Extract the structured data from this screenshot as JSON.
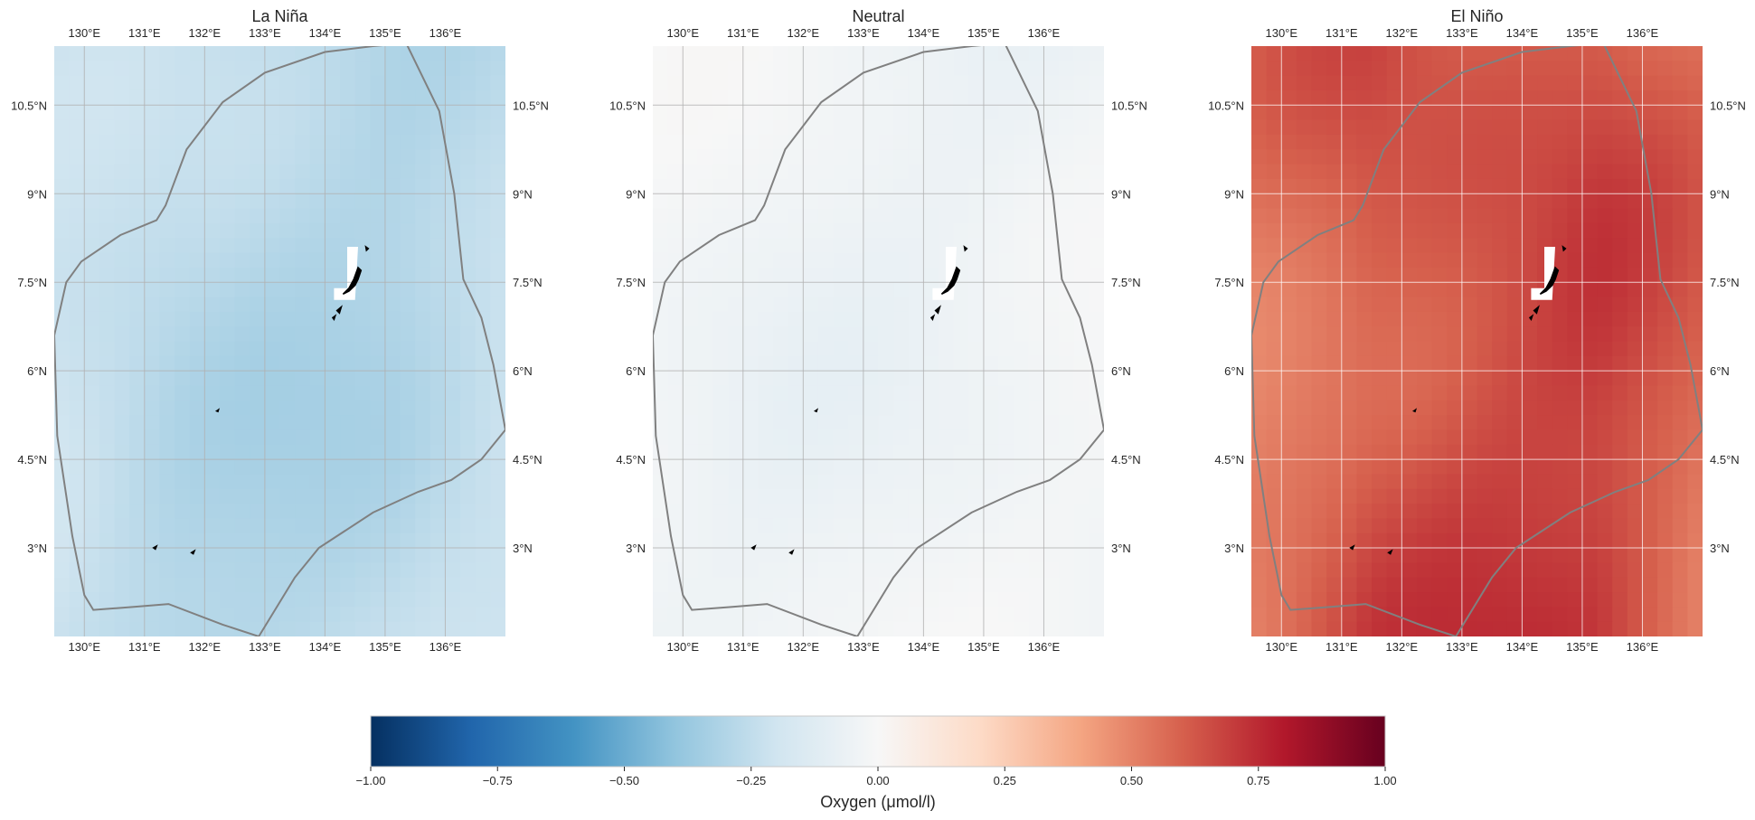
{
  "figure": {
    "panels": [
      {
        "id": "la-nina",
        "title": "La Niña",
        "anomaly_base": -0.28,
        "anomaly_amplitude": 0.07
      },
      {
        "id": "neutral",
        "title": "Neutral",
        "anomaly_base": -0.04,
        "anomaly_amplitude": 0.05
      },
      {
        "id": "el-nino",
        "title": "El Niño",
        "anomaly_base": 0.66,
        "anomaly_amplitude": 0.11
      }
    ],
    "lon_ticks": [
      {
        "value": 130,
        "label": "130°E"
      },
      {
        "value": 131,
        "label": "131°E"
      },
      {
        "value": 132,
        "label": "132°E"
      },
      {
        "value": 133,
        "label": "133°E"
      },
      {
        "value": 134,
        "label": "134°E"
      },
      {
        "value": 135,
        "label": "135°E"
      },
      {
        "value": 136,
        "label": "136°E"
      }
    ],
    "lat_ticks": [
      {
        "value": 10.5,
        "label": "10.5°N"
      },
      {
        "value": 9,
        "label": "9°N"
      },
      {
        "value": 7.5,
        "label": "7.5°N"
      },
      {
        "value": 6,
        "label": "6°N"
      },
      {
        "value": 4.5,
        "label": "4.5°N"
      },
      {
        "value": 3,
        "label": "3°N"
      }
    ],
    "extent": {
      "lon_min": 129.5,
      "lon_max": 137.0,
      "lat_min": 1.5,
      "lat_max": 11.5
    },
    "colorbar": {
      "label": "Oxygen (μmol/l)",
      "range": [
        -1.0,
        1.0
      ],
      "ticks": [
        {
          "value": -1.0,
          "label": "−1.00"
        },
        {
          "value": -0.75,
          "label": "−0.75"
        },
        {
          "value": -0.5,
          "label": "−0.50"
        },
        {
          "value": -0.25,
          "label": "−0.25"
        },
        {
          "value": 0.0,
          "label": "0.00"
        },
        {
          "value": 0.25,
          "label": "0.25"
        },
        {
          "value": 0.5,
          "label": "0.50"
        },
        {
          "value": 0.75,
          "label": "0.75"
        },
        {
          "value": 1.0,
          "label": "1.00"
        }
      ],
      "colormap": "RdBu_r",
      "colormap_stops": [
        "#053061",
        "#2166ac",
        "#4393c3",
        "#92c5de",
        "#d1e5f0",
        "#f7f7f7",
        "#fddbc7",
        "#f4a582",
        "#d6604d",
        "#b2182b",
        "#67001f"
      ]
    },
    "eez_boundary_color": "#808080",
    "land_color": "#000000",
    "eez_boundary": [
      [
        129.5,
        6.6
      ],
      [
        129.7,
        7.5
      ],
      [
        129.95,
        7.85
      ],
      [
        130.6,
        8.3
      ],
      [
        131.2,
        8.55
      ],
      [
        131.35,
        8.8
      ],
      [
        131.7,
        9.75
      ],
      [
        132.3,
        10.55
      ],
      [
        133.0,
        11.05
      ],
      [
        134.0,
        11.4
      ],
      [
        134.8,
        11.5
      ],
      [
        135.35,
        11.55
      ],
      [
        135.9,
        10.4
      ],
      [
        136.15,
        9.0
      ],
      [
        136.3,
        7.55
      ],
      [
        136.6,
        6.9
      ],
      [
        136.8,
        6.1
      ],
      [
        137.0,
        5.0
      ],
      [
        136.6,
        4.5
      ],
      [
        136.1,
        4.15
      ],
      [
        135.55,
        3.95
      ],
      [
        134.8,
        3.6
      ],
      [
        133.9,
        3.0
      ],
      [
        133.5,
        2.5
      ],
      [
        132.9,
        1.5
      ]
    ],
    "eez_boundary_west": [
      [
        129.5,
        6.6
      ],
      [
        129.55,
        4.9
      ],
      [
        129.8,
        3.2
      ],
      [
        130.0,
        2.2
      ],
      [
        130.15,
        1.95
      ],
      [
        130.8,
        2.0
      ],
      [
        131.4,
        2.05
      ],
      [
        132.3,
        1.7
      ],
      [
        132.9,
        1.5
      ]
    ],
    "land": [
      {
        "name": "Babeldaob",
        "outline": [
          [
            134.55,
            7.75
          ],
          [
            134.6,
            7.7
          ],
          [
            134.55,
            7.55
          ],
          [
            134.5,
            7.45
          ],
          [
            134.4,
            7.35
          ],
          [
            134.3,
            7.3
          ],
          [
            134.4,
            7.4
          ],
          [
            134.48,
            7.55
          ],
          [
            134.55,
            7.75
          ]
        ]
      },
      {
        "name": "Kayangel",
        "outline": [
          [
            134.68,
            8.1
          ],
          [
            134.72,
            8.07
          ],
          [
            134.69,
            8.04
          ],
          [
            134.68,
            8.1
          ]
        ]
      },
      {
        "name": "Peleliu",
        "outline": [
          [
            134.2,
            7.02
          ],
          [
            134.27,
            7.08
          ],
          [
            134.24,
            6.98
          ],
          [
            134.2,
            7.02
          ]
        ]
      },
      {
        "name": "Angaur",
        "outline": [
          [
            134.13,
            6.9
          ],
          [
            134.17,
            6.93
          ],
          [
            134.15,
            6.87
          ],
          [
            134.13,
            6.9
          ]
        ]
      },
      {
        "name": "Sonsorol",
        "outline": [
          [
            132.2,
            5.32
          ],
          [
            132.23,
            5.34
          ],
          [
            132.22,
            5.31
          ],
          [
            132.2,
            5.32
          ]
        ]
      },
      {
        "name": "Tobi",
        "outline": [
          [
            131.15,
            3.0
          ],
          [
            131.2,
            3.03
          ],
          [
            131.18,
            2.98
          ],
          [
            131.15,
            3.0
          ]
        ]
      },
      {
        "name": "Helen Reef",
        "outline": [
          [
            131.78,
            2.92
          ],
          [
            131.83,
            2.95
          ],
          [
            131.81,
            2.9
          ],
          [
            131.78,
            2.92
          ]
        ]
      }
    ],
    "data_gap": [
      [
        134.37,
        8.1
      ],
      [
        134.37,
        7.4
      ],
      [
        134.15,
        7.4
      ],
      [
        134.15,
        7.2
      ],
      [
        134.5,
        7.2
      ],
      [
        134.55,
        8.1
      ]
    ]
  }
}
